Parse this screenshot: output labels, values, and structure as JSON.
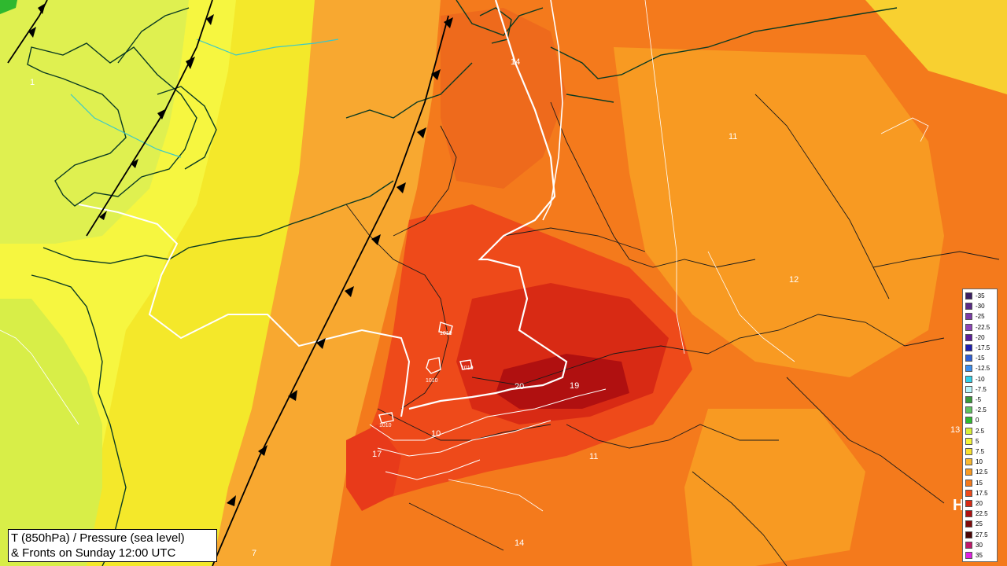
{
  "title": {
    "line1": "T (850hPa) / Pressure (sea level)",
    "line2": "& Fronts on Sunday 12:00 UTC"
  },
  "legend": [
    {
      "value": "-35",
      "color": "#3b1f63"
    },
    {
      "value": "-30",
      "color": "#5a2a86"
    },
    {
      "value": "-25",
      "color": "#7b3aa6"
    },
    {
      "value": "-22.5",
      "color": "#8e44b8"
    },
    {
      "value": "-20",
      "color": "#5c1f9a"
    },
    {
      "value": "-17.5",
      "color": "#1f1fb0"
    },
    {
      "value": "-15",
      "color": "#2f5fd8"
    },
    {
      "value": "-12.5",
      "color": "#3a8ef0"
    },
    {
      "value": "-10",
      "color": "#30d0e8"
    },
    {
      "value": "-7.5",
      "color": "#b8f4f8"
    },
    {
      "value": "-5",
      "color": "#3a9a3a"
    },
    {
      "value": "-2.5",
      "color": "#5fc25f"
    },
    {
      "value": "0",
      "color": "#2fb82f"
    },
    {
      "value": "2.5",
      "color": "#d8ee3a"
    },
    {
      "value": "5",
      "color": "#f4f43a"
    },
    {
      "value": "7.5",
      "color": "#f8e030"
    },
    {
      "value": "10",
      "color": "#f8b830"
    },
    {
      "value": "12.5",
      "color": "#f89a22"
    },
    {
      "value": "15",
      "color": "#f47a1c"
    },
    {
      "value": "17.5",
      "color": "#ee4a1a"
    },
    {
      "value": "20",
      "color": "#d82a14"
    },
    {
      "value": "22.5",
      "color": "#b01010"
    },
    {
      "value": "25",
      "color": "#800a0a"
    },
    {
      "value": "27.5",
      "color": "#4a0505"
    },
    {
      "value": "30",
      "color": "#c0186a"
    },
    {
      "value": "35",
      "color": "#e020e0"
    }
  ],
  "pressure_labels": [
    "1",
    "14",
    "11",
    "12",
    "13",
    "1010",
    "1010",
    "1010",
    "1010",
    "20",
    "19",
    "10",
    "17",
    "11",
    "14",
    "7"
  ],
  "high_marker": "H"
}
